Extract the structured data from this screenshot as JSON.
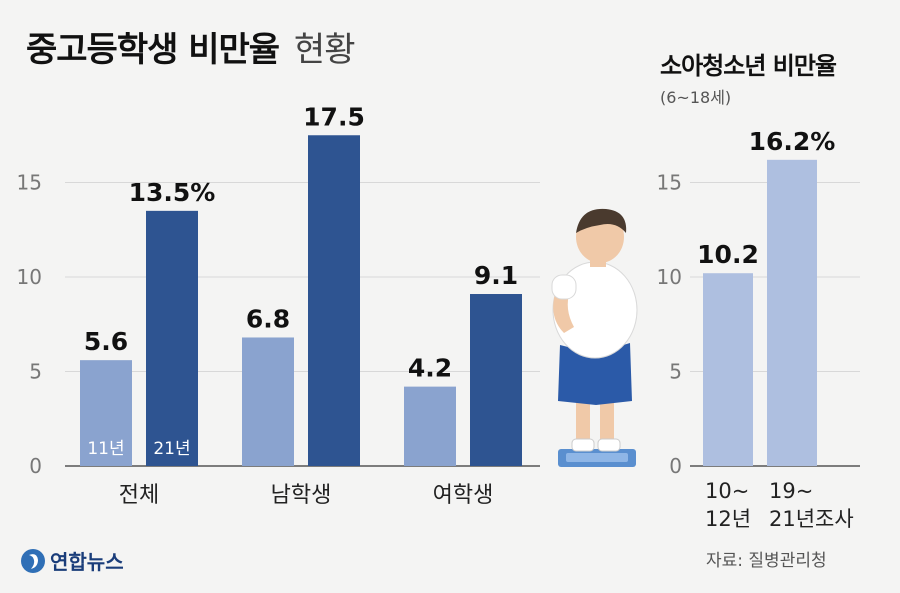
{
  "title": {
    "main": "중고등학생 비만율",
    "light": "현황"
  },
  "right_title": {
    "main": "소아청소년 비만율",
    "sub": "(6~18세)"
  },
  "source": "자료: 질병관리청",
  "logo": {
    "text": "연합뉴스",
    "icon": "yonhap-logo-icon"
  },
  "illustration": {
    "icon": "overweight-person-on-scale-icon"
  },
  "colors": {
    "light_bar": "#8aa3cf",
    "dark_bar": "#2e5491",
    "right_bar": "#aebfe0",
    "grid": "#d8d8d8",
    "axis": "#555555",
    "background": "#f4f4f3"
  },
  "chart_data": [
    {
      "type": "bar",
      "title": "중고등학생 비만율 현황",
      "categories": [
        "전체",
        "남학생",
        "여학생"
      ],
      "series": [
        {
          "name": "11년",
          "values": [
            5.6,
            6.8,
            4.2
          ]
        },
        {
          "name": "21년",
          "values": [
            13.5,
            17.5,
            9.1
          ]
        }
      ],
      "value_labels": [
        [
          "5.6",
          "6.8",
          "4.2"
        ],
        [
          "13.5%",
          "17.5",
          "9.1"
        ]
      ],
      "yticks": [
        "0",
        "5",
        "10",
        "15"
      ],
      "ylim": [
        0,
        17.5
      ],
      "grid": true,
      "legend": "inside first category bars"
    },
    {
      "type": "bar",
      "title": "소아청소년 비만율",
      "subtitle": "(6~18세)",
      "categories": [
        [
          "10~",
          "12년"
        ],
        [
          "19~",
          "21년조사"
        ]
      ],
      "values": [
        10.2,
        16.2
      ],
      "value_labels": [
        "10.2",
        "16.2%"
      ],
      "yticks": [
        "0",
        "5",
        "10",
        "15"
      ],
      "ylim": [
        0,
        17.5
      ],
      "grid": true
    }
  ]
}
